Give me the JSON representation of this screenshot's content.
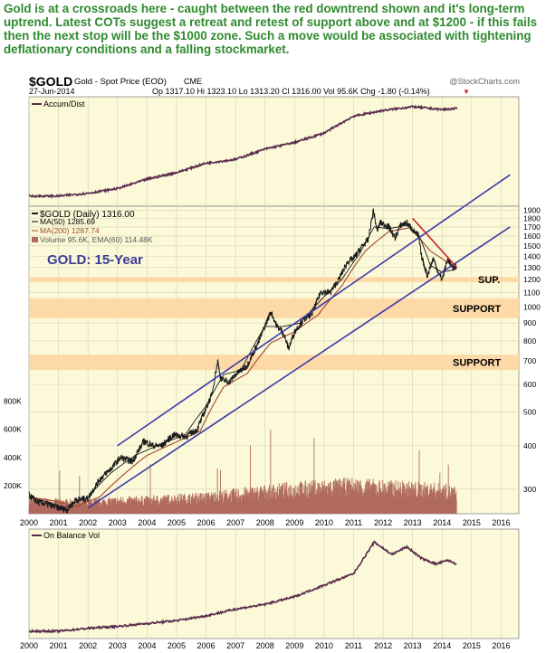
{
  "headline": "Gold is at a crossroads here - caught between the red downtrend shown and it's long-term uptrend. Latest COTs suggest a retreat and retest of support above and at $1200 - if this fails then the next stop will be the $1000 zone. Such a move would be associated with tightening deflationary conditions and a falling stockmarket.",
  "chart_header": {
    "symbol": "$GOLD",
    "description": "Gold - Spot Price (EOD)",
    "exchange": "CME",
    "watermark": "@StockCharts.com",
    "date": "27-Jun-2014",
    "quote": "Op 1317.10 Hi 1323.10 Lo 1313.20 Cl 1316.00 Vol 95.6K Chg -1.80 (-0.14%)",
    "quote_arrow": "▼"
  },
  "colors": {
    "panel_bg": "#fbf9d8",
    "price": "#1a1a1a",
    "ma50": "#000000",
    "ma200": "#a0482c",
    "volume": "#b06a5e",
    "indicator": "#5a2a4c",
    "trendline": "#3a3aa8",
    "downtrend": "#cc2222",
    "support_band": "#fcd9a6",
    "annotation": "#3b3b9a",
    "headline": "#2f8a2f"
  },
  "chart_data": [
    {
      "type": "line",
      "panel": "top",
      "title": "Accum/Dist",
      "x": [
        2000,
        2001,
        2002,
        2003,
        2004,
        2005,
        2006,
        2007,
        2008,
        2009,
        2010,
        2011,
        2012,
        2013,
        2014,
        2014.5
      ],
      "values": [
        0.05,
        0.05,
        0.08,
        0.13,
        0.23,
        0.3,
        0.4,
        0.44,
        0.55,
        0.62,
        0.72,
        0.9,
        0.96,
        1.0,
        0.97,
        0.98
      ],
      "y_axis_labels": false,
      "grid": true
    },
    {
      "type": "line",
      "panel": "main",
      "symbol": "$GOLD (Daily)",
      "last": "1316.00",
      "annotation": "GOLD: 15-Year",
      "y_scale": "log",
      "yticks": [
        300,
        400,
        500,
        600,
        700,
        800,
        900,
        1000,
        1100,
        1200,
        1300,
        1400,
        1500,
        1600,
        1700,
        1800,
        1900
      ],
      "ylim": [
        255,
        1950
      ],
      "xticks": [
        "2000",
        "2001",
        "2002",
        "2003",
        "2004",
        "2005",
        "2006",
        "2007",
        "2008",
        "2009",
        "2010",
        "2011",
        "2012",
        "2013",
        "2014",
        "2015",
        "2016"
      ],
      "series": [
        {
          "name": "$GOLD (Daily) 1316.00",
          "x": [
            2000.0,
            2000.3,
            2000.6,
            2001.0,
            2001.3,
            2001.6,
            2002.0,
            2002.4,
            2002.8,
            2003.1,
            2003.5,
            2003.9,
            2004.2,
            2004.5,
            2004.9,
            2005.3,
            2005.7,
            2005.95,
            2006.2,
            2006.4,
            2006.5,
            2006.8,
            2007.0,
            2007.4,
            2007.8,
            2008.2,
            2008.4,
            2008.6,
            2008.8,
            2009.0,
            2009.3,
            2009.6,
            2009.9,
            2010.2,
            2010.5,
            2010.8,
            2011.0,
            2011.3,
            2011.5,
            2011.67,
            2011.8,
            2011.9,
            2012.2,
            2012.4,
            2012.6,
            2012.8,
            2013.0,
            2013.2,
            2013.3,
            2013.5,
            2013.7,
            2013.9,
            2014.0,
            2014.2,
            2014.35,
            2014.49
          ],
          "values": [
            288,
            275,
            272,
            265,
            262,
            280,
            282,
            320,
            345,
            370,
            360,
            412,
            400,
            400,
            430,
            425,
            445,
            500,
            560,
            700,
            620,
            610,
            640,
            680,
            800,
            970,
            880,
            850,
            760,
            850,
            920,
            960,
            1110,
            1100,
            1200,
            1350,
            1380,
            1500,
            1560,
            1895,
            1650,
            1750,
            1700,
            1580,
            1720,
            1750,
            1670,
            1600,
            1400,
            1230,
            1380,
            1240,
            1200,
            1380,
            1290,
            1316
          ]
        },
        {
          "name": "MA(50) 1285.69",
          "x": [
            2000.0,
            2000.6,
            2001.2,
            2002.0,
            2002.8,
            2003.6,
            2004.5,
            2005.3,
            2006.0,
            2006.6,
            2007.2,
            2008.0,
            2008.6,
            2009.2,
            2009.9,
            2010.6,
            2011.2,
            2011.7,
            2012.2,
            2012.8,
            2013.2,
            2013.6,
            2014.0,
            2014.49
          ],
          "values": [
            285,
            276,
            265,
            285,
            335,
            375,
            405,
            430,
            520,
            640,
            660,
            880,
            880,
            900,
            1050,
            1200,
            1420,
            1700,
            1680,
            1720,
            1620,
            1320,
            1260,
            1286
          ]
        },
        {
          "name": "MA(200) 1287.74",
          "x": [
            2000.0,
            2000.8,
            2001.6,
            2002.4,
            2003.2,
            2004.0,
            2005.0,
            2005.8,
            2006.6,
            2007.4,
            2008.2,
            2009.0,
            2009.8,
            2010.6,
            2011.4,
            2012.2,
            2012.9,
            2013.6,
            2014.49
          ],
          "values": [
            285,
            278,
            268,
            285,
            330,
            375,
            410,
            440,
            590,
            645,
            790,
            850,
            950,
            1150,
            1450,
            1650,
            1690,
            1450,
            1288
          ]
        }
      ],
      "volume": {
        "name": "Volume 95.6K, EMA(60) 114.48K",
        "yticks": [
          "200K",
          "400K",
          "600K",
          "800K"
        ],
        "ylim": [
          0,
          900
        ],
        "unit": "K",
        "x": [
          2000,
          2001,
          2002,
          2003,
          2004,
          2005,
          2006,
          2007,
          2008,
          2009,
          2010,
          2011,
          2012,
          2013,
          2014,
          2014.49
        ],
        "values": [
          90,
          85,
          80,
          95,
          100,
          110,
          120,
          140,
          160,
          180,
          190,
          200,
          190,
          180,
          170,
          150
        ]
      },
      "support_zones": [
        {
          "label": "SUP.",
          "low": 1180,
          "high": 1220
        },
        {
          "label": "SUPPORT",
          "low": 930,
          "high": 1060
        },
        {
          "label": "SUPPORT",
          "low": 660,
          "high": 730
        }
      ],
      "trendlines": [
        {
          "x": [
            2003.0,
            2016.3
          ],
          "values": [
            400,
            2400
          ]
        },
        {
          "x": [
            2002.0,
            2016.3
          ],
          "values": [
            265,
            1700
          ]
        }
      ],
      "downtrend": {
        "x": [
          2013.0,
          2014.5
        ],
        "values": [
          1800,
          1300
        ]
      }
    },
    {
      "type": "line",
      "panel": "bottom",
      "title": "On Balance Vol",
      "xticks": [
        "2000",
        "2001",
        "2002",
        "2003",
        "2004",
        "2005",
        "2006",
        "2007",
        "2008",
        "2009",
        "2010",
        "2011",
        "2012",
        "2013",
        "2014",
        "2015",
        "2016"
      ],
      "x": [
        2000,
        2001,
        2002,
        2003,
        2004,
        2005,
        2006,
        2007,
        2008,
        2009,
        2010,
        2011,
        2011.7,
        2012.3,
        2012.8,
        2013.3,
        2013.8,
        2014.2,
        2014.49
      ],
      "values": [
        0.02,
        0.02,
        0.05,
        0.07,
        0.1,
        0.13,
        0.18,
        0.25,
        0.3,
        0.38,
        0.5,
        0.62,
        0.95,
        0.82,
        0.9,
        0.78,
        0.72,
        0.76,
        0.72
      ],
      "y_axis_labels": false,
      "grid": true
    }
  ]
}
